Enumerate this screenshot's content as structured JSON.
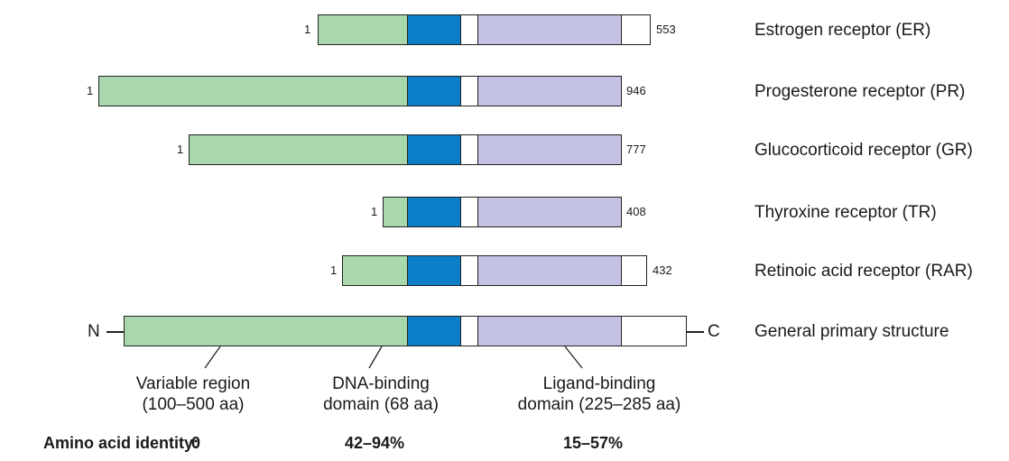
{
  "colors": {
    "variable": "#a8d8ac",
    "dna": "#0b7ec7",
    "hinge": "#ffffff",
    "ligand": "#c4c2e2",
    "cterm": "#ffffff"
  },
  "receptors": [
    {
      "name": "Estrogen receptor (ER)",
      "start": "1",
      "end": "553"
    },
    {
      "name": "Progesterone receptor (PR)",
      "start": "1",
      "end": "946"
    },
    {
      "name": "Glucocorticoid receptor (GR)",
      "start": "1",
      "end": "777"
    },
    {
      "name": "Thyroxine receptor (TR)",
      "start": "1",
      "end": "408"
    },
    {
      "name": "Retinoic acid receptor (RAR)",
      "start": "1",
      "end": "432"
    }
  ],
  "general": {
    "name": "General primary structure",
    "n_label": "N",
    "c_label": "C"
  },
  "domains": {
    "variable_line1": "Variable region",
    "variable_line2": "(100–500 aa)",
    "dna_line1": "DNA-binding",
    "dna_line2": "domain (68 aa)",
    "ligand_line1": "Ligand-binding",
    "ligand_line2": "domain (225–285 aa)"
  },
  "identity": {
    "label": "Amino acid identity:",
    "variable": "0",
    "dna": "42–94%",
    "ligand": "15–57%"
  }
}
